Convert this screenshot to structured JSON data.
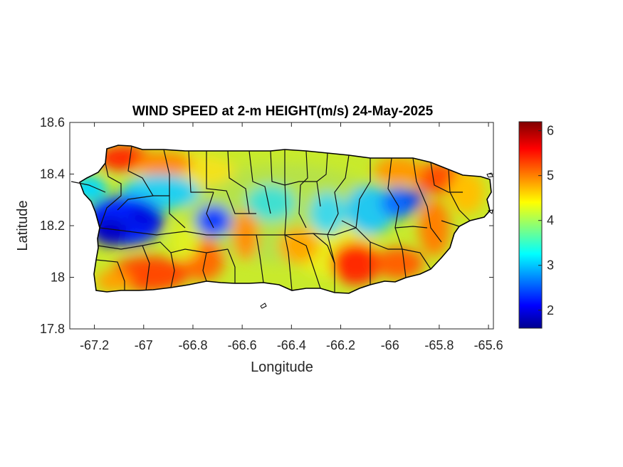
{
  "map": {
    "title": "WIND SPEED at 2-m HEIGHT(m/s) 24-May-2025",
    "xlabel": "Longitude",
    "ylabel": "Latitude",
    "xlim": [
      -67.3,
      -65.58
    ],
    "ylim": [
      17.8,
      18.6
    ],
    "xticks": [
      -67.2,
      -67,
      -66.8,
      -66.6,
      -66.4,
      -66.2,
      -66,
      -65.8,
      -65.6
    ],
    "xtick_labels": [
      "-67.2",
      "-67",
      "-66.8",
      "-66.6",
      "-66.4",
      "-66.2",
      "-66",
      "-65.8",
      "-65.6"
    ],
    "yticks": [
      17.8,
      18,
      18.2,
      18.4,
      18.6
    ],
    "ytick_labels": [
      "17.8",
      "18",
      "18.2",
      "18.4",
      "18.6"
    ],
    "colormap": "jet",
    "colorbar": {
      "range": [
        1.6,
        6.2
      ],
      "ticks": [
        2,
        3,
        4,
        5,
        6
      ],
      "tick_labels": [
        "2",
        "3",
        "4",
        "5",
        "6"
      ]
    },
    "colormap_stops": [
      "#00008f",
      "#0000ff",
      "#00ffff",
      "#ffff00",
      "#ff0000",
      "#800000"
    ],
    "region": "Puerto Rico",
    "low_wind_areas": [
      "western interior near -67.1, 18.2",
      "central interior near -66.75, 18.22",
      "eastern interior near -66.0, 18.27"
    ],
    "high_wind_areas": [
      "northwest coast",
      "south coast",
      "northeast coast"
    ]
  }
}
